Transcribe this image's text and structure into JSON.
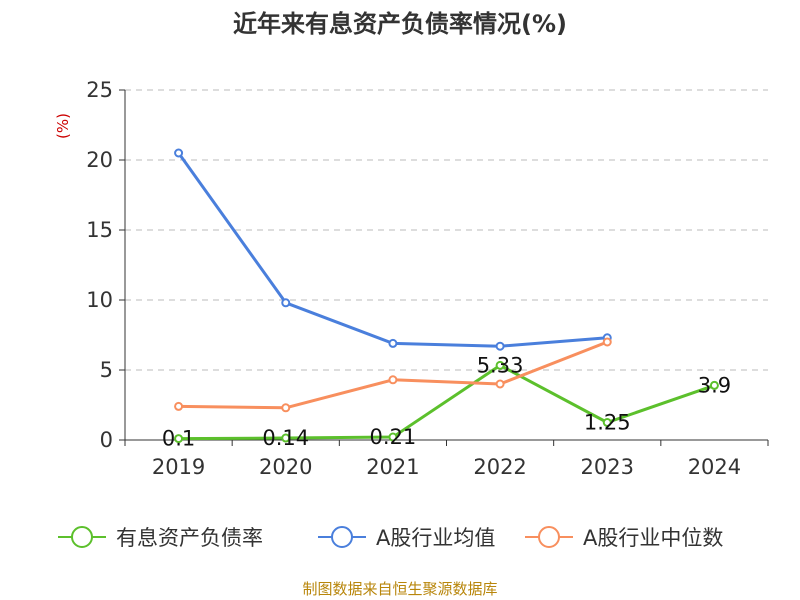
{
  "chart_data": {
    "type": "line",
    "title": "近年来有息资产负债率情况(%)",
    "unit_label": "(%)",
    "categories": [
      "2019",
      "2020",
      "2021",
      "2022",
      "2023",
      "2024"
    ],
    "ylim": [
      0,
      25
    ],
    "yticks": [
      0,
      5,
      10,
      15,
      20,
      25
    ],
    "grid": true,
    "legend_position": "bottom",
    "series": [
      {
        "name": "有息资产负债率",
        "color": "#5cc02c",
        "values": [
          0.1,
          0.14,
          0.21,
          5.33,
          1.25,
          3.9
        ],
        "labels": [
          "0.1",
          "0.14",
          "0.21",
          "5.33",
          "1.25",
          "3.9"
        ]
      },
      {
        "name": "A股行业均值",
        "color": "#4a7fdc",
        "values": [
          20.5,
          9.8,
          6.9,
          6.7,
          7.3,
          null
        ]
      },
      {
        "name": "A股行业中位数",
        "color": "#f88f5e",
        "values": [
          2.4,
          2.3,
          4.3,
          4.0,
          7.0,
          null
        ]
      }
    ]
  },
  "source_text": "制图数据来自恒生聚源数据库"
}
